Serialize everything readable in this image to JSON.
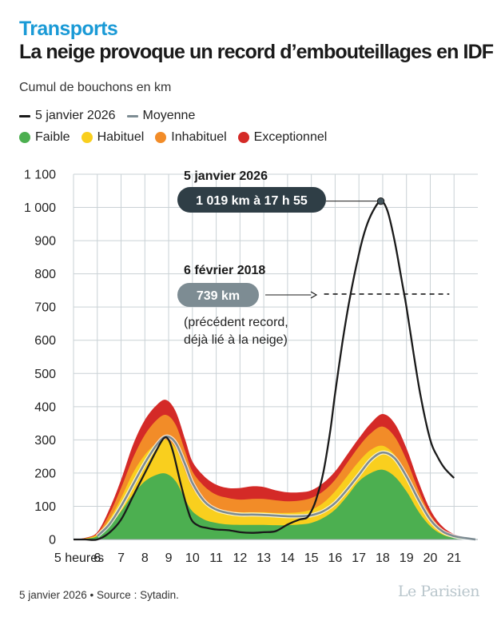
{
  "header": {
    "kicker": "Transports",
    "title": "La neige provoque un record d’embouteillages en IDF",
    "subtitle": "Cumul de bouchons en km"
  },
  "legend": {
    "lines": [
      {
        "label": "5 janvier 2026",
        "color": "#1a1a1a"
      },
      {
        "label": "Moyenne",
        "color": "#7d8c93"
      }
    ],
    "levels": [
      {
        "label": "Faible",
        "color": "#4caf50"
      },
      {
        "label": "Habituel",
        "color": "#f9cf1e"
      },
      {
        "label": "Inhabituel",
        "color": "#f28c28"
      },
      {
        "label": "Exceptionnel",
        "color": "#d42a27"
      }
    ]
  },
  "chart_data": {
    "type": "area",
    "title": "La neige provoque un record d’embouteillages en IDF",
    "ylabel": "Cumul de bouchons en km",
    "xlim": [
      5,
      22
    ],
    "ylim": [
      0,
      1100
    ],
    "x_ticks": [
      5,
      6,
      7,
      8,
      9,
      10,
      11,
      12,
      13,
      14,
      15,
      16,
      17,
      18,
      19,
      20,
      21
    ],
    "x_tick_labels": [
      "5 heures",
      "6",
      "7",
      "8",
      "9",
      "10",
      "11",
      "12",
      "13",
      "14",
      "15",
      "16",
      "17",
      "18",
      "19",
      "20",
      "21"
    ],
    "y_ticks": [
      0,
      100,
      200,
      300,
      400,
      500,
      600,
      700,
      800,
      900,
      1000,
      1100
    ],
    "y_tick_labels": [
      "0",
      "100",
      "200",
      "300",
      "400",
      "500",
      "600",
      "700",
      "800",
      "900",
      "1 000",
      "1 100"
    ],
    "bands": {
      "x": [
        5,
        5.5,
        6,
        6.5,
        7,
        7.5,
        8,
        8.5,
        8.9,
        9.3,
        9.7,
        10,
        10.5,
        11,
        11.5,
        12,
        12.5,
        13,
        13.5,
        14,
        14.5,
        15,
        15.5,
        16,
        16.5,
        17,
        17.5,
        18,
        18.5,
        19,
        19.5,
        20,
        20.5,
        21,
        21.5,
        21.9
      ],
      "series": [
        {
          "name": "Faible",
          "color": "#4caf50",
          "values": [
            0,
            2,
            10,
            40,
            85,
            135,
            175,
            195,
            198,
            175,
            120,
            85,
            60,
            50,
            45,
            44,
            44,
            44,
            43,
            43,
            45,
            50,
            65,
            90,
            130,
            175,
            200,
            210,
            190,
            145,
            85,
            40,
            15,
            5,
            2,
            0
          ]
        },
        {
          "name": "Habituel",
          "color": "#f9cf1e",
          "values": [
            0,
            3,
            15,
            60,
            125,
            200,
            255,
            290,
            300,
            275,
            205,
            155,
            115,
            95,
            85,
            82,
            82,
            82,
            80,
            80,
            82,
            90,
            110,
            145,
            190,
            235,
            270,
            282,
            255,
            195,
            120,
            60,
            25,
            10,
            4,
            0
          ]
        },
        {
          "name": "Inhabituel",
          "color": "#f28c28",
          "values": [
            0,
            4,
            18,
            75,
            155,
            245,
            315,
            360,
            375,
            345,
            265,
            205,
            160,
            135,
            125,
            120,
            122,
            122,
            118,
            115,
            117,
            125,
            145,
            180,
            230,
            280,
            320,
            340,
            310,
            240,
            150,
            75,
            32,
            13,
            5,
            0
          ]
        },
        {
          "name": "Exceptionnel",
          "color": "#d42a27",
          "values": [
            0,
            5,
            22,
            90,
            180,
            285,
            360,
            405,
            420,
            385,
            300,
            235,
            190,
            165,
            155,
            155,
            160,
            158,
            148,
            142,
            142,
            148,
            170,
            205,
            255,
            305,
            350,
            378,
            350,
            275,
            175,
            90,
            40,
            16,
            6,
            0
          ]
        }
      ]
    },
    "series": [
      {
        "name": "Moyenne",
        "color": "#7d8c93",
        "x": [
          6,
          6.5,
          7,
          7.5,
          8,
          8.5,
          8.9,
          9.3,
          9.7,
          10,
          10.5,
          11,
          11.5,
          12,
          12.5,
          13,
          13.5,
          14,
          14.5,
          15,
          15.5,
          16,
          16.5,
          17,
          17.5,
          18,
          18.5,
          19,
          19.5,
          20,
          20.5,
          21,
          21.5,
          21.9
        ],
        "values": [
          10,
          45,
          100,
          165,
          230,
          285,
          310,
          290,
          225,
          170,
          115,
          90,
          80,
          75,
          75,
          74,
          72,
          70,
          70,
          73,
          85,
          110,
          150,
          195,
          240,
          262,
          245,
          190,
          120,
          60,
          25,
          10,
          4,
          0
        ]
      },
      {
        "name": "5 janvier 2026",
        "color": "#1a1a1a",
        "x": [
          5,
          5.5,
          6,
          6.5,
          7,
          7.5,
          8,
          8.5,
          8.8,
          9,
          9.2,
          9.5,
          9.8,
          10,
          10.3,
          10.6,
          11,
          11.5,
          12,
          12.5,
          13,
          13.5,
          14,
          14.5,
          14.8,
          15,
          15.2,
          15.5,
          15.8,
          16,
          16.3,
          16.6,
          17,
          17.3,
          17.6,
          17.92,
          18.2,
          18.5,
          18.8,
          19,
          19.3,
          19.6,
          20,
          20.3,
          20.6,
          21
        ],
        "values": [
          0,
          0,
          0,
          20,
          60,
          130,
          200,
          270,
          305,
          300,
          260,
          170,
          90,
          55,
          40,
          35,
          30,
          28,
          22,
          20,
          22,
          25,
          45,
          60,
          65,
          85,
          120,
          200,
          330,
          440,
          590,
          720,
          860,
          940,
          990,
          1019,
          990,
          900,
          780,
          700,
          560,
          430,
          300,
          250,
          215,
          185
        ]
      }
    ],
    "annotations": [
      {
        "title": "5 janvier 2026",
        "label": "1 019 km à 17 h 55",
        "x": 17.92,
        "y": 1019
      },
      {
        "title": "6 février 2018",
        "label": "739 km",
        "note": [
          "(précédent record,",
          "déjà lié à la neige)"
        ],
        "y": 739,
        "x_range": [
          15.2,
          20.8
        ]
      }
    ]
  },
  "footer": {
    "source": "5 janvier 2026 • Source : Sytadin.",
    "brand": "Le Parisien"
  }
}
